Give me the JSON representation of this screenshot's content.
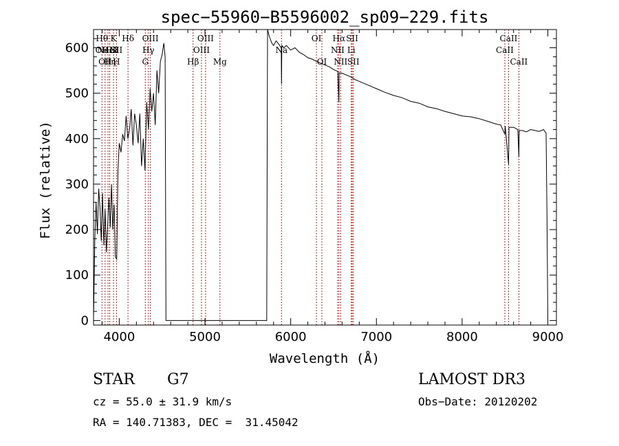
{
  "chart_data": {
    "type": "line",
    "title": "spec−55960−B5596002_sp09−229.fits",
    "xlabel": "Wavelength (Å)",
    "ylabel": "Flux (relative)",
    "xlim": [
      3700,
      9100
    ],
    "ylim": [
      -10,
      640
    ],
    "xticks": [
      4000,
      5000,
      6000,
      7000,
      8000,
      9000
    ],
    "yticks": [
      0,
      100,
      200,
      300,
      400,
      500,
      600
    ],
    "grid": false,
    "series": [
      {
        "points": [
          [
            3700,
            5
          ],
          [
            3715,
            180
          ],
          [
            3730,
            260
          ],
          [
            3745,
            190
          ],
          [
            3760,
            290
          ],
          [
            3775,
            250
          ],
          [
            3790,
            175
          ],
          [
            3805,
            280
          ],
          [
            3820,
            165
          ],
          [
            3835,
            245
          ],
          [
            3850,
            150
          ],
          [
            3865,
            210
          ],
          [
            3880,
            270
          ],
          [
            3895,
            205
          ],
          [
            3910,
            300
          ],
          [
            3925,
            200
          ],
          [
            3940,
            255
          ],
          [
            3955,
            140
          ],
          [
            3970,
            135
          ],
          [
            3985,
            330
          ],
          [
            4000,
            390
          ],
          [
            4020,
            370
          ],
          [
            4040,
            410
          ],
          [
            4060,
            395
          ],
          [
            4080,
            450
          ],
          [
            4100,
            400
          ],
          [
            4120,
            420
          ],
          [
            4140,
            465
          ],
          [
            4160,
            385
          ],
          [
            4180,
            455
          ],
          [
            4200,
            430
          ],
          [
            4220,
            390
          ],
          [
            4240,
            455
          ],
          [
            4260,
            340
          ],
          [
            4280,
            400
          ],
          [
            4300,
            330
          ],
          [
            4320,
            480
          ],
          [
            4340,
            420
          ],
          [
            4360,
            510
          ],
          [
            4380,
            460
          ],
          [
            4400,
            500
          ],
          [
            4420,
            430
          ],
          [
            4440,
            550
          ],
          [
            4460,
            500
          ],
          [
            4480,
            570
          ],
          [
            4500,
            585
          ],
          [
            4520,
            610
          ],
          [
            4535,
            580
          ],
          [
            4545,
            0
          ],
          [
            4560,
            0
          ],
          [
            5720,
            0
          ],
          [
            5730,
            640
          ],
          [
            5750,
            625
          ],
          [
            5780,
            610
          ],
          [
            5800,
            605
          ],
          [
            5830,
            615
          ],
          [
            5860,
            608
          ],
          [
            5890,
            600
          ],
          [
            5893,
            520
          ],
          [
            5897,
            605
          ],
          [
            5920,
            600
          ],
          [
            5950,
            605
          ],
          [
            6000,
            595
          ],
          [
            6050,
            600
          ],
          [
            6100,
            590
          ],
          [
            6150,
            585
          ],
          [
            6200,
            578
          ],
          [
            6250,
            575
          ],
          [
            6300,
            570
          ],
          [
            6350,
            566
          ],
          [
            6400,
            562
          ],
          [
            6450,
            558
          ],
          [
            6500,
            552
          ],
          [
            6550,
            548
          ],
          [
            6562,
            480
          ],
          [
            6566,
            545
          ],
          [
            6600,
            544
          ],
          [
            6650,
            540
          ],
          [
            6700,
            536
          ],
          [
            6750,
            530
          ],
          [
            6800,
            526
          ],
          [
            6900,
            518
          ],
          [
            7000,
            510
          ],
          [
            7100,
            502
          ],
          [
            7200,
            495
          ],
          [
            7300,
            490
          ],
          [
            7400,
            482
          ],
          [
            7500,
            478
          ],
          [
            7600,
            470
          ],
          [
            7700,
            466
          ],
          [
            7800,
            460
          ],
          [
            7900,
            455
          ],
          [
            8000,
            450
          ],
          [
            8100,
            448
          ],
          [
            8200,
            444
          ],
          [
            8300,
            438
          ],
          [
            8400,
            432
          ],
          [
            8450,
            430
          ],
          [
            8498,
            410
          ],
          [
            8502,
            428
          ],
          [
            8542,
            343
          ],
          [
            8546,
            425
          ],
          [
            8600,
            425
          ],
          [
            8650,
            420
          ],
          [
            8662,
            360
          ],
          [
            8666,
            418
          ],
          [
            8700,
            418
          ],
          [
            8750,
            415
          ],
          [
            8800,
            420
          ],
          [
            8850,
            418
          ],
          [
            8900,
            416
          ],
          [
            8950,
            420
          ],
          [
            8980,
            412
          ],
          [
            8990,
            230
          ],
          [
            9000,
            5
          ]
        ]
      }
    ],
    "lines": [
      {
        "x": 3798,
        "labels": [
          "Hθ",
          "OII"
        ]
      },
      {
        "x": 3835,
        "labels": [
          "",
          "",
          "OII"
        ]
      },
      {
        "x": 3869,
        "labels": [
          "",
          "NeIII"
        ]
      },
      {
        "x": 3889,
        "labels": [
          "",
          "HeI",
          "Hη"
        ]
      },
      {
        "x": 3933,
        "labels": [
          "K"
        ]
      },
      {
        "x": 3968,
        "labels": [
          "",
          "SII",
          "H"
        ]
      },
      {
        "x": 4102,
        "labels": [
          "Hδ"
        ]
      },
      {
        "x": 4304,
        "labels": [
          "",
          "",
          "G"
        ]
      },
      {
        "x": 4340,
        "labels": [
          "",
          "Hγ"
        ]
      },
      {
        "x": 4363,
        "labels": [
          "OIII"
        ]
      },
      {
        "x": 4861,
        "labels": [
          "",
          "",
          "Hβ"
        ]
      },
      {
        "x": 4959,
        "labels": [
          "",
          "OIII"
        ]
      },
      {
        "x": 5007,
        "labels": [
          "OIII"
        ]
      },
      {
        "x": 5175,
        "labels": [
          "",
          "",
          "Mg"
        ]
      },
      {
        "x": 5893,
        "labels": [
          "",
          "Na"
        ]
      },
      {
        "x": 6300,
        "labels": [
          "OI"
        ]
      },
      {
        "x": 6364,
        "labels": [
          "",
          "",
          "OI"
        ]
      },
      {
        "x": 6548,
        "labels": [
          "",
          "NII"
        ]
      },
      {
        "x": 6563,
        "labels": [
          "Hα"
        ]
      },
      {
        "x": 6583,
        "labels": [
          "",
          "",
          "NII"
        ]
      },
      {
        "x": 6707,
        "labels": [
          "",
          "Li"
        ]
      },
      {
        "x": 6717,
        "labels": [
          "SII"
        ]
      },
      {
        "x": 6731,
        "labels": [
          "",
          "",
          "SII"
        ]
      },
      {
        "x": 8498,
        "labels": [
          "",
          "CaII"
        ]
      },
      {
        "x": 8542,
        "labels": [
          "CaII"
        ]
      },
      {
        "x": 8662,
        "labels": [
          "",
          "",
          "CaII"
        ]
      }
    ],
    "line_color": "#b22222",
    "spectrum_color": "#000000"
  },
  "info": {
    "class": "STAR",
    "subclass": "G7",
    "survey": "LAMOST DR3",
    "cz": "cz = 55.0 ± 31.9 km/s",
    "obs_date": "Obs−Date: 20120202",
    "coords": "RA = 140.71383, DEC =  31.45042"
  }
}
